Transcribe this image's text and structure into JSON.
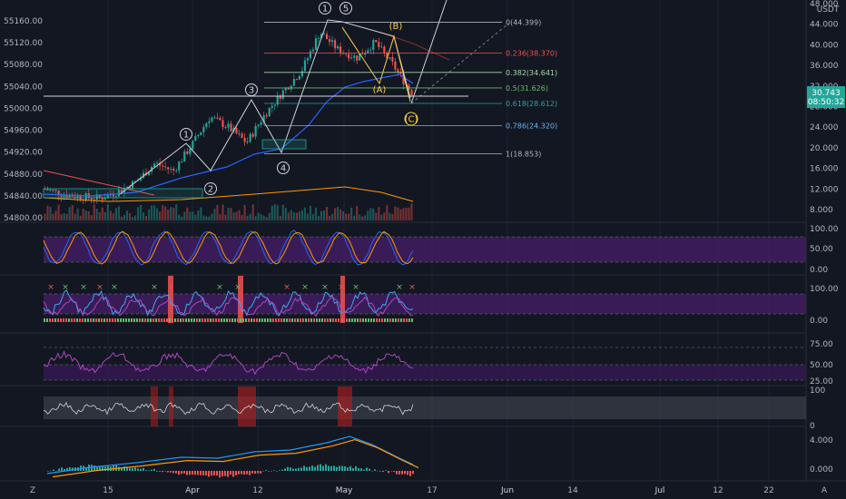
{
  "colors": {
    "bg": "#131722",
    "grid": "#2a2e39",
    "up": "#26a69a",
    "down": "#ef5350",
    "purple_band": "#4a1f6e",
    "yellow": "#f7d046",
    "white": "#d1d4dc"
  },
  "chart_data": {
    "type": "line",
    "symbol_currency": "USDT",
    "x_ticks": [
      "15",
      "Apr",
      "12",
      "May",
      "17",
      "Jun",
      "14",
      "Jul",
      "12",
      "22"
    ],
    "left_axis": {
      "ticks": [
        "55160.00",
        "55120.00",
        "55080.00",
        "55040.00",
        "55000.00",
        "54960.00",
        "54920.00",
        "54880.00",
        "54840.00",
        "54800.00"
      ],
      "ylim": [
        54790,
        55175
      ]
    },
    "right_axis": {
      "ticks": [
        "48.000",
        "44.000",
        "40.000",
        "36.000",
        "32.000",
        "28.000",
        "24.000",
        "20.000",
        "16.000",
        "12.000",
        "8.000"
      ],
      "ylim": [
        6,
        48
      ],
      "price_label": "30.743",
      "countdown_label": "08:50:32"
    },
    "price_series": {
      "x": [
        0,
        0.05,
        0.1,
        0.15,
        0.2,
        0.25,
        0.3,
        0.35,
        0.4,
        0.45,
        0.5,
        0.55,
        0.6,
        0.65,
        0.7,
        0.75,
        0.8,
        0.85,
        0.9,
        0.95,
        1.0
      ],
      "close": [
        12.0,
        11.0,
        10.5,
        10.2,
        11.5,
        13.5,
        17.0,
        15.5,
        20.5,
        26.0,
        24.0,
        21.0,
        26.5,
        31.0,
        35.0,
        42.5,
        39.0,
        37.5,
        40.5,
        36.0,
        30.7
      ]
    },
    "fib_levels": [
      {
        "label": "0(44.399)",
        "value": 44.399,
        "color": "#b2b5be"
      },
      {
        "label": "0.236(38.370)",
        "value": 38.37,
        "color": "#ef5350"
      },
      {
        "label": "0.382(34.641)",
        "value": 34.641,
        "color": "#a5d6a7"
      },
      {
        "label": "0.5(31.626)",
        "value": 31.626,
        "color": "#66bb6a"
      },
      {
        "label": "0.618(28.612)",
        "value": 28.612,
        "color": "#26a69a"
      },
      {
        "label": "0.786(24.320)",
        "value": 24.32,
        "color": "#64b5f6"
      },
      {
        "label": "1(18.853)",
        "value": 18.853,
        "color": "#b2b5be"
      }
    ],
    "wave_labels_white": [
      "1",
      "2",
      "3",
      "4",
      "1",
      "5"
    ],
    "wave_labels_yellow": [
      "(B)",
      "(A)",
      "(C)"
    ],
    "panels": [
      {
        "name": "stoch_rsi",
        "ticks": [
          "100.00",
          "50.00",
          "0.00"
        ]
      },
      {
        "name": "wavetrend",
        "ticks": [
          "100.00",
          "0.00"
        ]
      },
      {
        "name": "rsi",
        "ticks": [
          "75.00",
          "50.00",
          "25.00"
        ]
      },
      {
        "name": "oscillator",
        "ticks": [
          "100",
          "0"
        ]
      },
      {
        "name": "macd",
        "ticks": [
          "4.000",
          "0.000"
        ]
      }
    ]
  }
}
